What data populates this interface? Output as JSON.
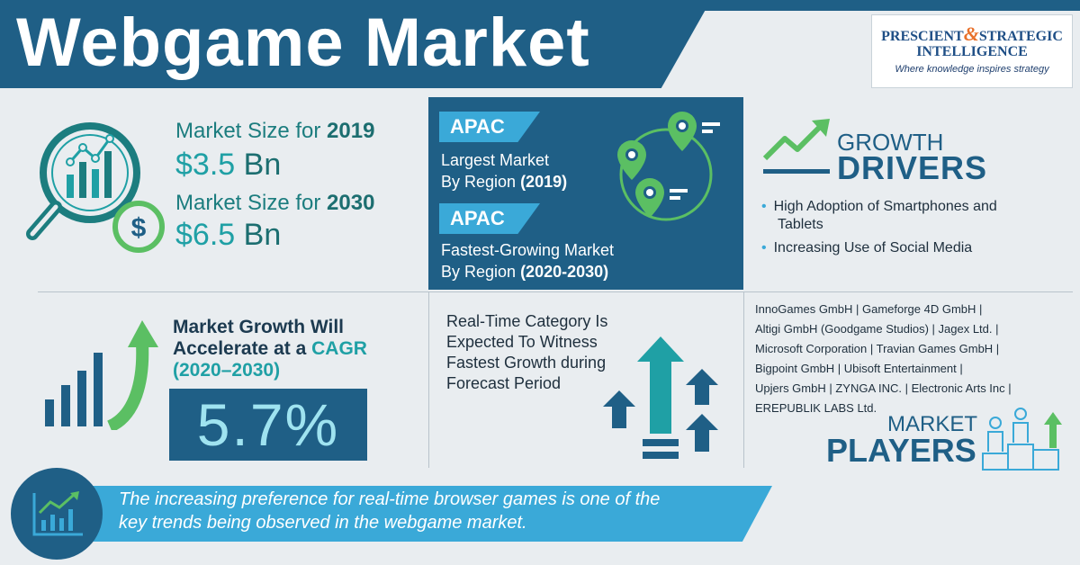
{
  "header": {
    "title": "Webgame Market"
  },
  "logo": {
    "line1_a": "PRESCIENT",
    "ampersand": "&",
    "line1_b": "STRATEGIC",
    "line2": "INTELLIGENCE",
    "tagline": "Where knowledge inspires strategy"
  },
  "market_size": {
    "label_2019_prefix": "Market Size for ",
    "year_2019": "2019",
    "value_2019": "$3.5",
    "unit_2019": "Bn",
    "label_2030_prefix": "Market Size for ",
    "year_2030": "2030",
    "value_2030": "$6.5",
    "unit_2030": "Bn",
    "icon": "magnifier-chart-dollar-icon"
  },
  "apac": {
    "tag1": "APAC",
    "text1_line1": "Largest Market",
    "text1_line2_prefix": "By Region ",
    "text1_period": "(2019)",
    "tag2": "APAC",
    "text2_line1": "Fastest-Growing Market",
    "text2_line2_prefix": "By Region ",
    "text2_period": "(2020-2030)",
    "icon": "map-pins-icon"
  },
  "growth_drivers": {
    "heading_small": "GROWTH",
    "heading_big": "DRIVERS",
    "items": [
      {
        "line1": "High Adoption of Smartphones and",
        "line2": "Tablets"
      },
      {
        "line1": "Increasing Use of Social Media",
        "line2": ""
      }
    ],
    "icon": "trend-arrow-icon"
  },
  "cagr": {
    "line1": "Market Growth Will",
    "line2_prefix": "Accelerate at a ",
    "word": "CAGR",
    "period": "(2020–2030)",
    "value": "5.7%",
    "icon": "growth-bars-icon"
  },
  "realtime": {
    "lines": [
      "Real-Time Category Is",
      "Expected To Witness",
      "Fastest Growth during",
      "Forecast Period"
    ],
    "icon": "up-arrows-icon"
  },
  "players": {
    "lines": [
      "InnoGames GmbH | Gameforge 4D GmbH |",
      "Altigi GmbH (Goodgame Studios) | Jagex Ltd. |",
      "Microsoft Corporation | Travian Games GmbH |",
      "Bigpoint GmbH | Ubisoft Entertainment |",
      "Upjers GmbH | ZYNGA INC. | Electronic Arts Inc |",
      "EREPUBLIK LABS Ltd."
    ],
    "heading_small": "MARKET",
    "heading_big": "PLAYERS",
    "icon": "podium-people-icon"
  },
  "footer": {
    "line1": "The increasing preference for real-time browser games is one of the",
    "line2": "key trends being observed in the webgame market.",
    "icon": "chart-trend-icon"
  },
  "colors": {
    "navy": "#1f5f86",
    "teal": "#1fa0a5",
    "sky": "#3aa9d8",
    "green": "#5bbf63",
    "background": "#e9edf0"
  }
}
